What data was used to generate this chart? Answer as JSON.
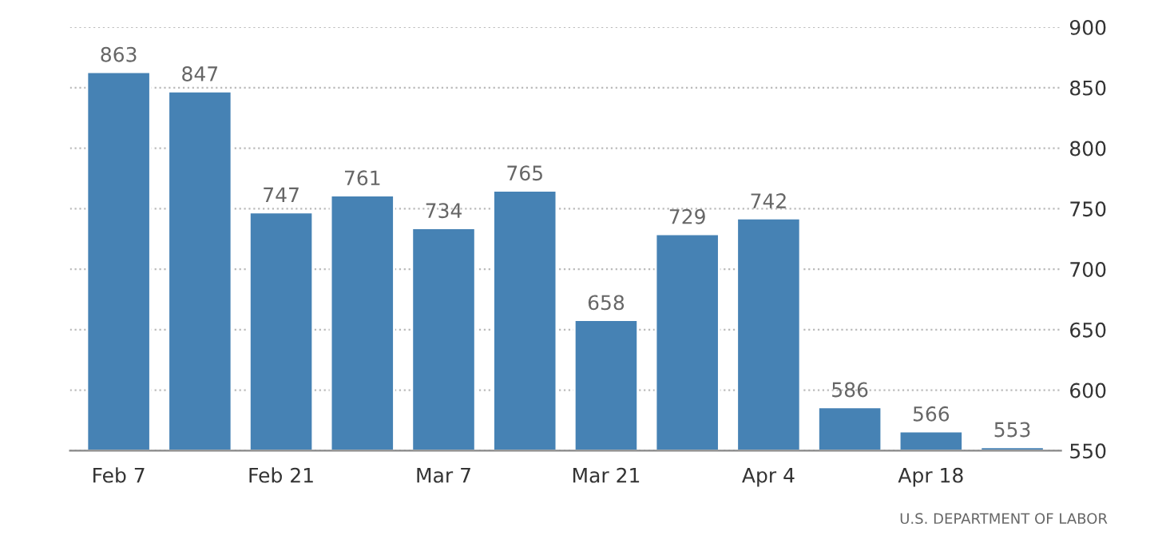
{
  "chart_data": {
    "type": "bar",
    "categories": [
      "Feb 7",
      null,
      "Feb 21",
      null,
      "Mar 7",
      null,
      "Mar 21",
      null,
      "Apr 4",
      null,
      "Apr 18",
      null
    ],
    "values": [
      863,
      847,
      747,
      761,
      734,
      765,
      658,
      729,
      742,
      586,
      566,
      553
    ],
    "color": "#4682b4",
    "ylim": [
      550,
      900
    ],
    "yticks": [
      550,
      600,
      650,
      700,
      750,
      800,
      850,
      900
    ],
    "grid": "y",
    "data_labels": true,
    "annotations": [
      "U.S. DEPARTMENT OF LABOR"
    ]
  }
}
